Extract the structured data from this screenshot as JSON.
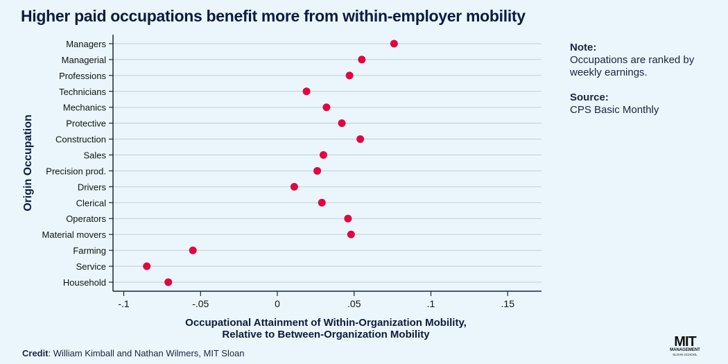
{
  "chart_data": {
    "type": "scatter",
    "title": "Higher paid occupations benefit more from within-employer mobility",
    "xlabel": "Occupational Attainment of Within-Organization Mobility, Relative to Between-Organization Mobility",
    "xlabel_lines": [
      "Occupational Attainment of Within-Organization Mobility,",
      "Relative to Between-Organization Mobility"
    ],
    "ylabel": "Origin Occupation",
    "xlim": [
      -0.107,
      0.172
    ],
    "xticks": [
      -0.1,
      -0.05,
      0,
      0.05,
      0.1,
      0.15
    ],
    "xtick_labels": [
      "-.1",
      "-.05",
      "0",
      ".05",
      ".1",
      ".15"
    ],
    "grid": true,
    "marker_color": "#e3063f",
    "categories": [
      "Managers",
      "Managerial",
      "Professions",
      "Technicians",
      "Mechanics",
      "Protective",
      "Construction",
      "Sales",
      "Precision prod.",
      "Drivers",
      "Clerical",
      "Operators",
      "Material movers",
      "Farming",
      "Service",
      "Household"
    ],
    "values": [
      0.076,
      0.055,
      0.047,
      0.019,
      0.032,
      0.042,
      0.054,
      0.03,
      0.026,
      0.011,
      0.029,
      0.046,
      0.048,
      -0.055,
      -0.085,
      -0.071
    ]
  },
  "note": {
    "heading": "Note:",
    "lines": [
      "Occupations are ranked by",
      "weekly earnings."
    ]
  },
  "source": {
    "heading": "Source:",
    "text": "CPS Basic Monthly"
  },
  "credit": {
    "label": "Credit",
    "text": ": William Kimball and Nathan Wilmers, MIT Sloan"
  },
  "logo": {
    "main": "MIT",
    "line1": "MANAGEMENT",
    "line2": "SLOAN SCHOOL"
  }
}
